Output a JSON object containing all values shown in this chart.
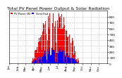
{
  "title": "Total PV Panel Power Output & Solar Radiation",
  "legend": [
    "PV Power (W)",
    "Solar Rad."
  ],
  "bar_color_red": "#ff0000",
  "bar_color_blue": "#0000ff",
  "bg_color": "#ffffff",
  "grid_color": "#c0c0c0",
  "ylim": [
    0,
    900
  ],
  "yticks": [
    0,
    100,
    200,
    300,
    400,
    500,
    600,
    700,
    800
  ],
  "title_fontsize": 4.5,
  "tick_fontsize": 3.0,
  "n_points": 365,
  "xtick_labels": [
    "Jan",
    "Feb",
    "Mar",
    "Apr",
    "May",
    "Jun",
    "Jul",
    "Aug",
    "Sep",
    "Oct",
    "Nov",
    "Dec"
  ],
  "xtick_positions": [
    0,
    31,
    59,
    90,
    120,
    151,
    181,
    212,
    243,
    273,
    304,
    334
  ],
  "seasonal_peak": 860,
  "seasonal_shape": "bell"
}
